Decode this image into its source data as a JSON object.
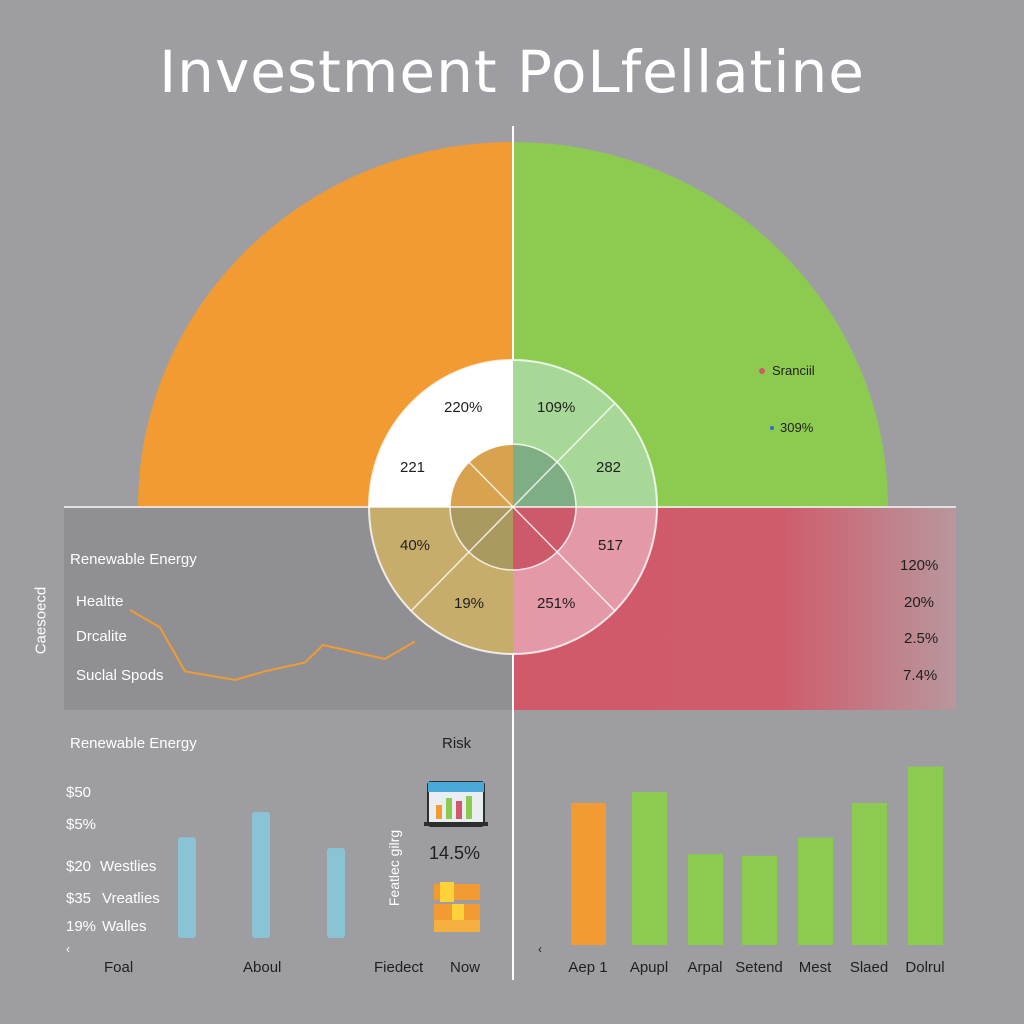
{
  "title": "Investment PoLfellatine",
  "colors": {
    "background": "#9e9ea2",
    "orange": "#f29b32",
    "green": "#8dcb50",
    "red": "#d05a6a",
    "olive": "#c7ad6c",
    "teal_bar": "#8ac4d4",
    "dark_panel": "#8f8f94"
  },
  "chart_data": [
    {
      "type": "pie",
      "name": "half-donut",
      "slices": [
        {
          "label": "Sranciil",
          "value": 50,
          "color": "#f29b32"
        },
        {
          "label": "",
          "value": 50,
          "color": "#8dcb50"
        }
      ],
      "legend": [
        {
          "label": "Sranciil",
          "icon": "pie-icon"
        },
        {
          "label": "309%",
          "icon": "dot-icon"
        }
      ]
    },
    {
      "type": "pie",
      "name": "center-ring",
      "outer_labels": [
        "220%",
        "109%",
        "221",
        "282",
        "40%",
        "517",
        "19%",
        "251%"
      ]
    },
    {
      "type": "line",
      "name": "categories-trend",
      "y_axis_label": "Caesoecd",
      "rows": [
        "Renewable Energy",
        "Healtte",
        "Drcalite",
        "Suclal Spods"
      ],
      "right_values": [
        "120%",
        "20%",
        "2.5%",
        "7.4%"
      ],
      "values": [
        4,
        3,
        0.5,
        0,
        0.5,
        1,
        2,
        1.2,
        2.2
      ]
    },
    {
      "type": "bar",
      "name": "left-bars",
      "title": "Renewable Energy",
      "side_label": "Risk",
      "y_tick_labels": [
        "$50",
        "$5%",
        "$20",
        "$35",
        "19%"
      ],
      "row_labels": [
        "Westlies",
        "Vreatlies",
        "Walles"
      ],
      "x_labels": [
        "Foal",
        "Aboul",
        "Fiedect",
        "Now"
      ],
      "values": [
        56,
        70,
        50
      ],
      "stat_label": "Featlec gilrg",
      "stat_value": "14.5%"
    },
    {
      "type": "bar",
      "name": "right-bars",
      "categories": [
        "Aep 1",
        "Apupl",
        "Arpal",
        "Setend",
        "Mest",
        "Slaed",
        "Dolrul"
      ],
      "values": [
        78,
        84,
        50,
        49,
        59,
        78,
        98
      ],
      "colors": [
        "#f29b32",
        "#8dcb50",
        "#8dcb50",
        "#8dcb50",
        "#8dcb50",
        "#8dcb50",
        "#8dcb50"
      ]
    }
  ]
}
